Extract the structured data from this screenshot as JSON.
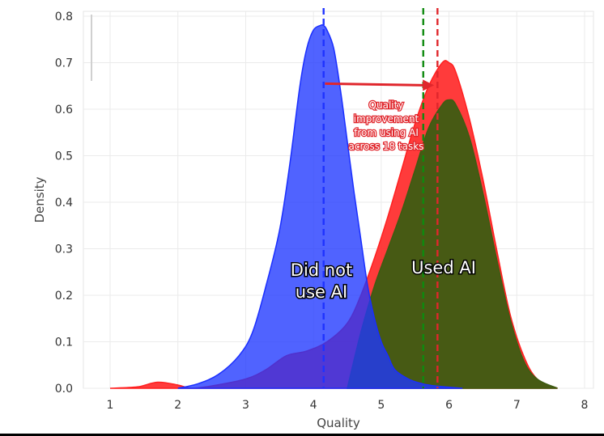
{
  "chart_data": {
    "type": "area",
    "xlabel": "Quality",
    "ylabel": "Density",
    "xlim": [
      0.7,
      8.2
    ],
    "ylim": [
      0,
      0.81
    ],
    "x_ticks": [
      "1",
      "2",
      "3",
      "4",
      "5",
      "6",
      "7",
      "8"
    ],
    "y_ticks": [
      "0.0",
      "0.1",
      "0.2",
      "0.3",
      "0.4",
      "0.5",
      "0.6",
      "0.7",
      "0.8"
    ],
    "grid": true,
    "series": [
      {
        "key": "did_not_use",
        "color": "#1f37ff",
        "x": [
          2.0,
          2.3,
          2.6,
          2.9,
          3.1,
          3.3,
          3.5,
          3.65,
          3.8,
          3.9,
          4.0,
          4.1,
          4.15,
          4.2,
          4.3,
          4.4,
          4.5,
          4.6,
          4.7,
          4.8,
          4.9,
          5.0,
          5.1,
          5.2,
          5.4,
          5.6,
          5.8,
          6.2
        ],
        "y": [
          0.0,
          0.01,
          0.03,
          0.07,
          0.12,
          0.22,
          0.34,
          0.48,
          0.65,
          0.73,
          0.77,
          0.78,
          0.78,
          0.77,
          0.73,
          0.64,
          0.53,
          0.42,
          0.32,
          0.22,
          0.15,
          0.1,
          0.07,
          0.04,
          0.02,
          0.01,
          0.005,
          0.0
        ]
      },
      {
        "key": "used_red",
        "color": "#ff2a2a",
        "x": [
          1.0,
          1.4,
          1.7,
          2.0,
          2.2,
          2.5,
          3.0,
          3.3,
          3.6,
          3.9,
          4.2,
          4.5,
          4.7,
          4.9,
          5.1,
          5.3,
          5.5,
          5.7,
          5.9,
          6.0,
          6.1,
          6.3,
          6.5,
          6.7,
          6.9,
          7.1,
          7.3,
          7.6
        ],
        "y": [
          0.0,
          0.003,
          0.013,
          0.007,
          0.0,
          0.005,
          0.02,
          0.04,
          0.07,
          0.08,
          0.1,
          0.14,
          0.2,
          0.28,
          0.37,
          0.47,
          0.57,
          0.65,
          0.7,
          0.7,
          0.68,
          0.58,
          0.45,
          0.3,
          0.16,
          0.07,
          0.02,
          0.0
        ]
      },
      {
        "key": "used_green",
        "color": "#3d5c12",
        "x": [
          4.5,
          4.7,
          4.9,
          5.1,
          5.3,
          5.5,
          5.7,
          5.9,
          6.0,
          6.1,
          6.3,
          6.5,
          6.7,
          6.9,
          7.1,
          7.3,
          7.6
        ],
        "y": [
          0.0,
          0.12,
          0.22,
          0.3,
          0.38,
          0.47,
          0.56,
          0.61,
          0.62,
          0.61,
          0.54,
          0.42,
          0.28,
          0.15,
          0.06,
          0.02,
          0.0
        ]
      }
    ],
    "vlines": [
      {
        "key": "mean_no_ai",
        "x": 4.15,
        "color": "#1e32ff"
      },
      {
        "key": "mean_green",
        "x": 5.62,
        "color": "#0f8a0f"
      },
      {
        "key": "mean_ai",
        "x": 5.83,
        "color": "#e0262c"
      }
    ],
    "arrow": {
      "x_from": 4.17,
      "x_to": 5.78,
      "y": 0.655,
      "color": "#e0262c"
    },
    "labels": {
      "did_not_use": [
        "Did not",
        "use AI"
      ],
      "used_ai": "Used AI",
      "note": [
        "Quality",
        "improvement",
        "from using AI",
        "across 18 tasks"
      ]
    }
  }
}
